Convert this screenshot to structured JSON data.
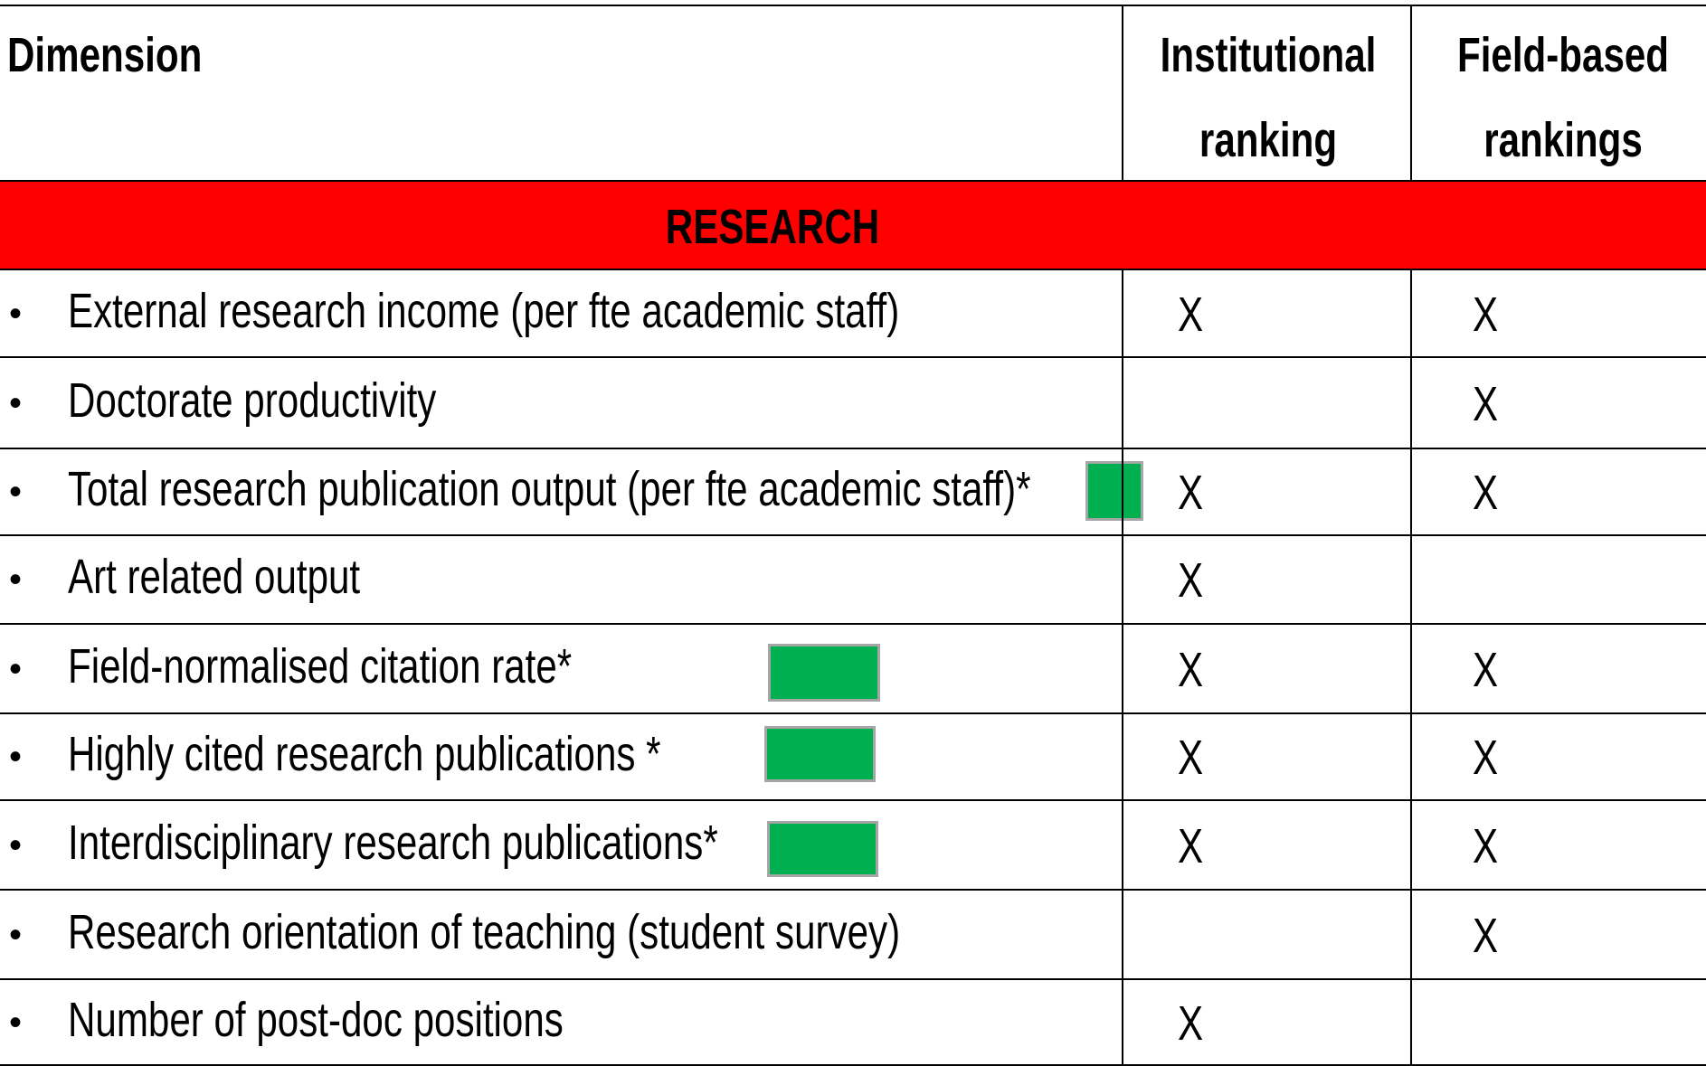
{
  "header": {
    "dimension": "Dimension",
    "institutional": [
      "Institutional",
      "ranking"
    ],
    "field": [
      "Field-based",
      "rankings"
    ]
  },
  "section": "RESEARCH",
  "rows": [
    {
      "dimension": "External research income (per fte academic staff)",
      "institutional": "X",
      "field": "X"
    },
    {
      "dimension": "Doctorate productivity",
      "field": "X"
    },
    {
      "dimension": "Total research publication output (per fte academic staff)*",
      "institutional": "X",
      "field": "X"
    },
    {
      "dimension": "Art related output",
      "institutional": "X"
    },
    {
      "dimension": "Field-normalised citation rate*",
      "institutional": "X",
      "field": "X"
    },
    {
      "dimension": "Highly cited research publications *",
      "institutional": "X",
      "field": "X"
    },
    {
      "dimension": "Interdisciplinary research publications*",
      "institutional": "X",
      "field": "X"
    },
    {
      "dimension": "Research orientation of teaching (student survey)",
      "field": "X"
    },
    {
      "dimension": "Number of post-doc positions",
      "institutional": "X"
    }
  ]
}
